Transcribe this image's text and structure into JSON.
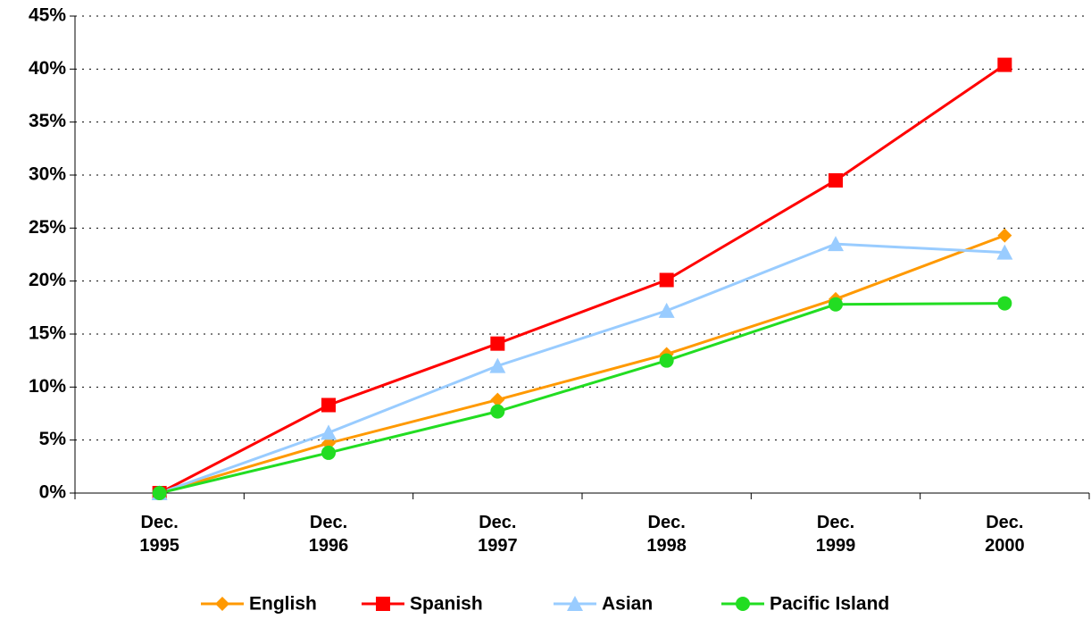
{
  "chart_data": {
    "type": "line",
    "categories": [
      "Dec. 1995",
      "Dec. 1996",
      "Dec. 1997",
      "Dec. 1998",
      "Dec. 1999",
      "Dec. 2000"
    ],
    "series": [
      {
        "name": "English",
        "color": "#ff9900",
        "marker": "diamond",
        "values": [
          0,
          4.7,
          8.8,
          13.1,
          18.3,
          24.3
        ]
      },
      {
        "name": "Spanish",
        "color": "#ff0000",
        "marker": "square",
        "values": [
          0,
          8.3,
          14.1,
          20.1,
          29.5,
          40.4
        ]
      },
      {
        "name": "Asian",
        "color": "#99ccff",
        "marker": "triangle",
        "values": [
          0,
          5.7,
          12.0,
          17.2,
          23.5,
          22.7
        ]
      },
      {
        "name": "Pacific Island",
        "color": "#22dd22",
        "marker": "circle",
        "values": [
          0,
          3.8,
          7.7,
          12.5,
          17.8,
          17.9
        ]
      }
    ],
    "ylim": [
      0,
      45
    ],
    "yticks": [
      {
        "value": 0,
        "label": "0%"
      },
      {
        "value": 5,
        "label": "5%"
      },
      {
        "value": 10,
        "label": "10%"
      },
      {
        "value": 15,
        "label": "15%"
      },
      {
        "value": 20,
        "label": "20%"
      },
      {
        "value": 25,
        "label": "25%"
      },
      {
        "value": 30,
        "label": "30%"
      },
      {
        "value": 35,
        "label": "35%"
      },
      {
        "value": 40,
        "label": "40%"
      },
      {
        "value": 45,
        "label": "45%"
      }
    ],
    "grid": true,
    "legend": "bottom"
  }
}
